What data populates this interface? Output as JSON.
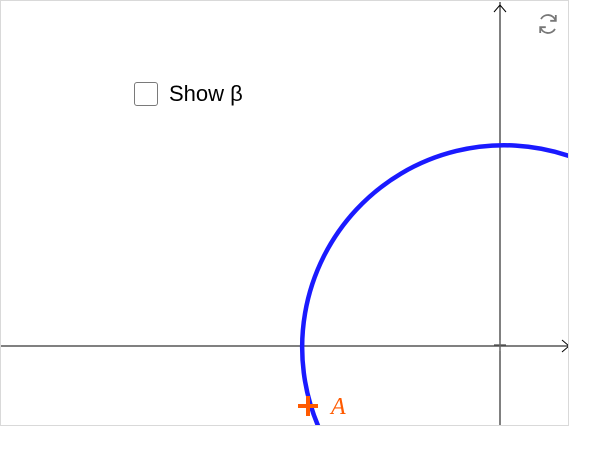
{
  "checkbox": {
    "label": "Show β",
    "checked": false
  },
  "point": {
    "label": "A",
    "color": "#ff5a00"
  },
  "circle": {
    "color": "#1a1aff"
  },
  "icons": {
    "reset": "reset-icon"
  }
}
